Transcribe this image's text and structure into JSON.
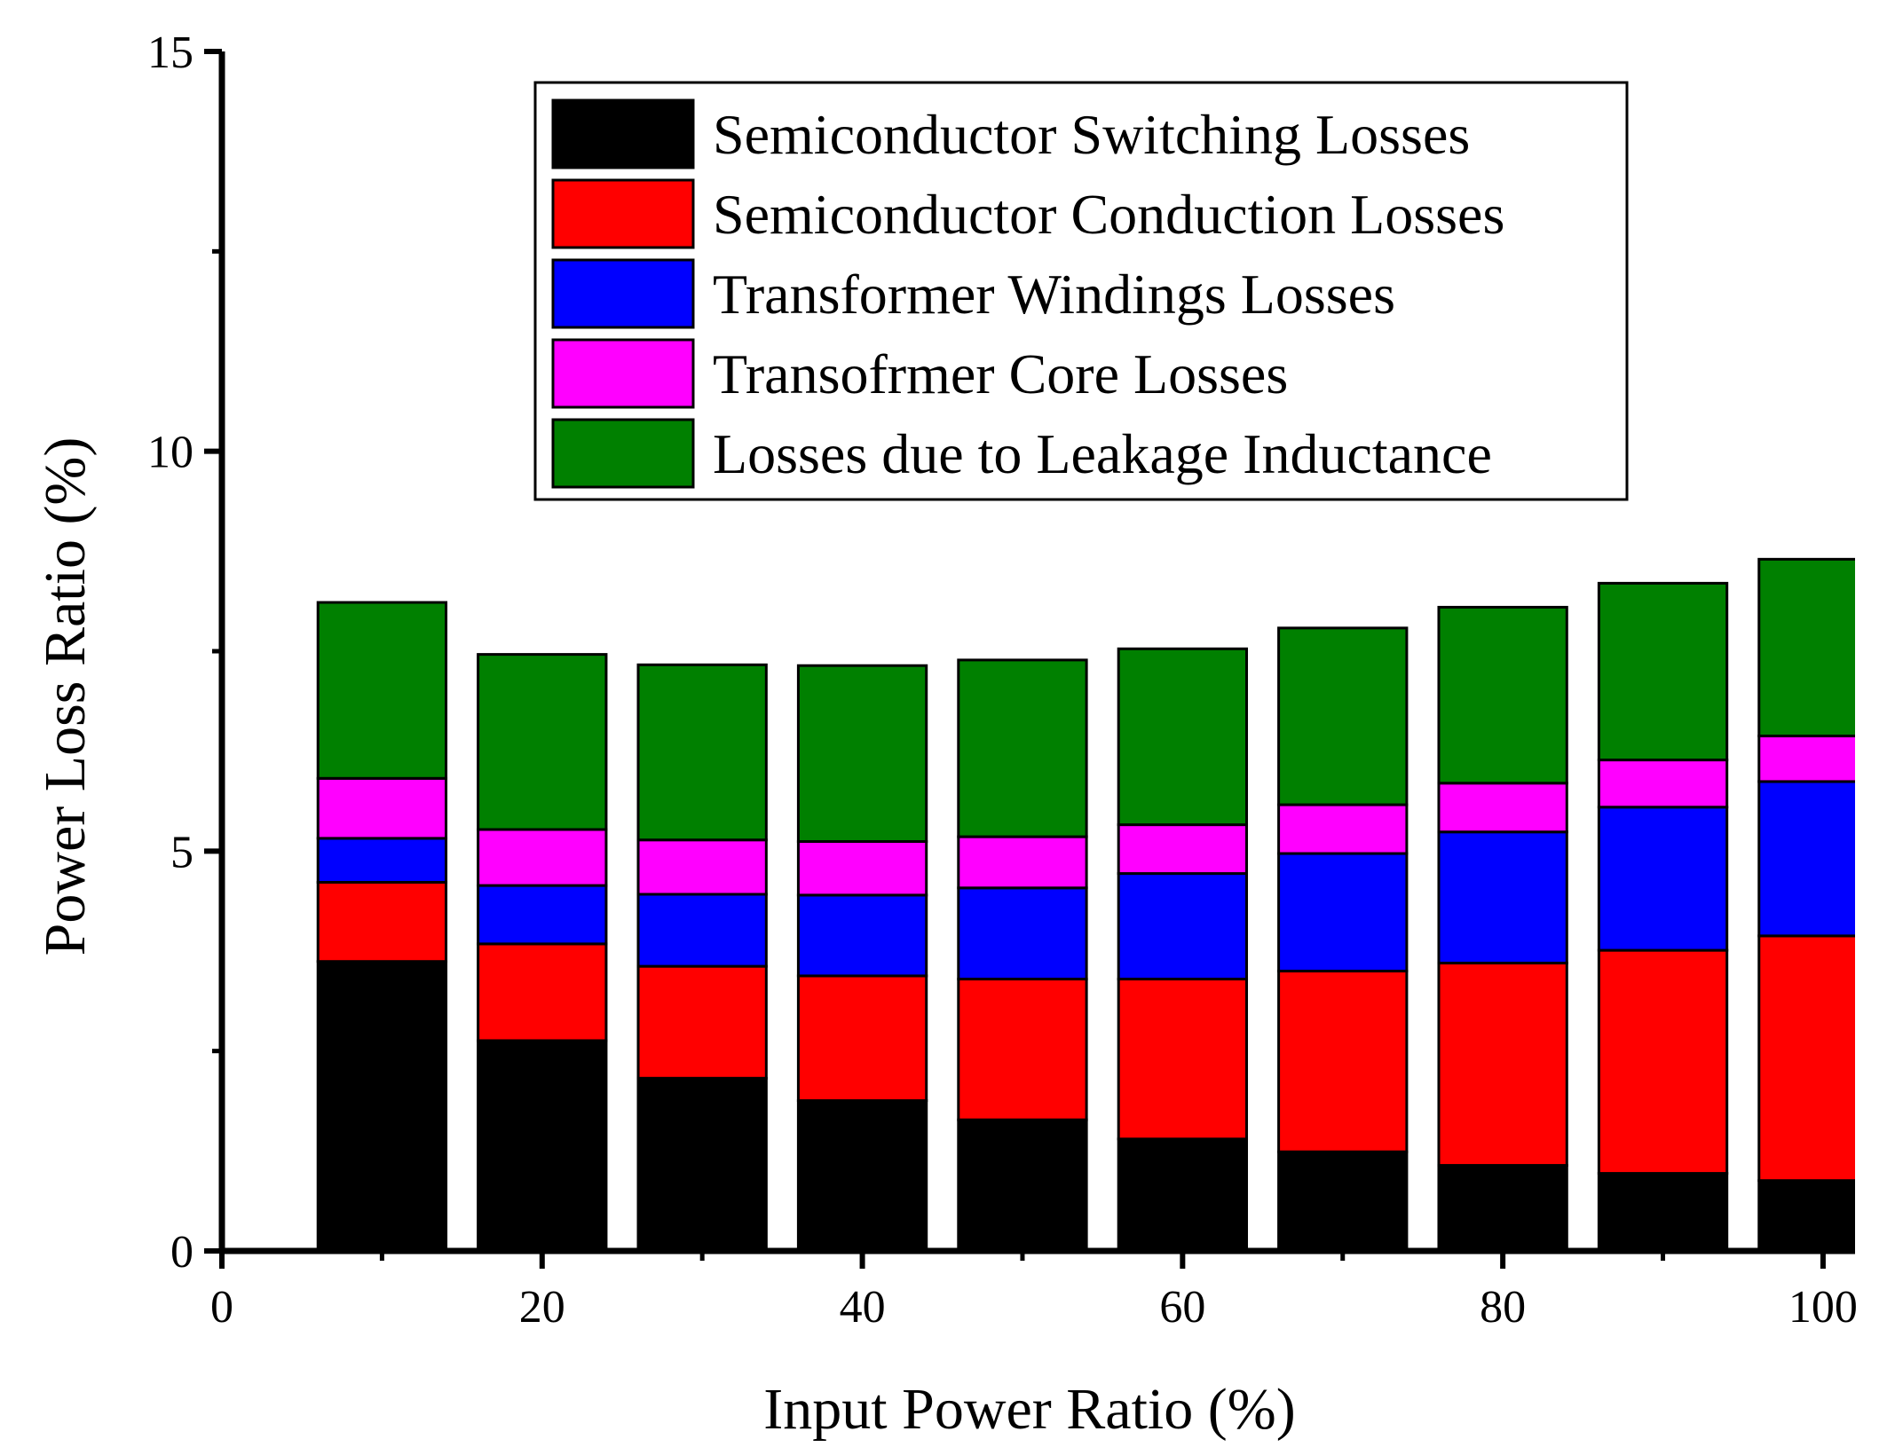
{
  "chart_data": {
    "type": "bar",
    "stacked": true,
    "xlabel": "Input Power Ratio (%)",
    "ylabel": "Power Loss Ratio (%)",
    "xlim": [
      0,
      102
    ],
    "ylim": [
      0,
      15
    ],
    "x_ticks": [
      0,
      20,
      40,
      60,
      80,
      100
    ],
    "y_ticks": [
      0,
      5,
      10,
      15
    ],
    "legend_position": "top-center",
    "categories": [
      10,
      20,
      30,
      40,
      50,
      60,
      70,
      80,
      90,
      100
    ],
    "series": [
      {
        "name": "Semiconductor Switching Losses",
        "color": "#000000",
        "values": [
          3.62,
          2.63,
          2.16,
          1.88,
          1.64,
          1.4,
          1.24,
          1.07,
          0.97,
          0.88
        ]
      },
      {
        "name": "Semiconductor Conduction Losses",
        "color": "#ff0000",
        "values": [
          0.99,
          1.21,
          1.4,
          1.56,
          1.76,
          2.0,
          2.26,
          2.53,
          2.79,
          3.06
        ]
      },
      {
        "name": "Transformer Windings Losses",
        "color": "#0000ff",
        "values": [
          0.55,
          0.73,
          0.9,
          1.01,
          1.14,
          1.32,
          1.47,
          1.64,
          1.79,
          1.93
        ]
      },
      {
        "name": "Transofrmer Core Losses",
        "color": "#ff00ff",
        "values": [
          0.75,
          0.7,
          0.68,
          0.67,
          0.64,
          0.61,
          0.61,
          0.61,
          0.59,
          0.57
        ]
      },
      {
        "name": "Losses due to Leakage Inductance",
        "color": "#008000",
        "values": [
          2.2,
          2.19,
          2.19,
          2.2,
          2.21,
          2.2,
          2.21,
          2.2,
          2.21,
          2.21
        ]
      }
    ]
  }
}
